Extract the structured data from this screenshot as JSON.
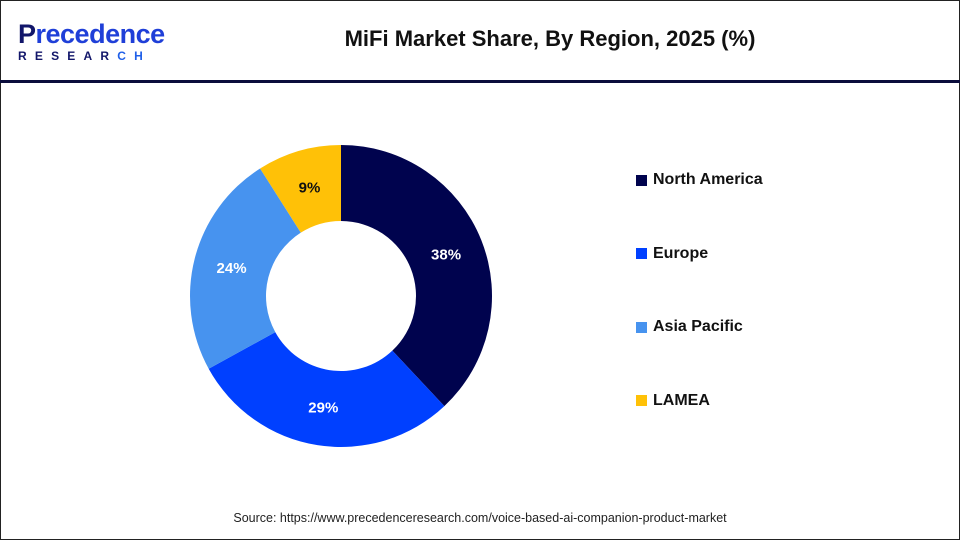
{
  "logo": {
    "text_top_first": "P",
    "text_top_rest": "recedence",
    "text_bottom_main": "RESEAR",
    "text_bottom_accent": "CH"
  },
  "header": {
    "title": "MiFi Market Share, By Region, 2025 (%)"
  },
  "chart_data": {
    "type": "pie",
    "donut": true,
    "title": "MiFi Market Share, By Region, 2025 (%)",
    "categories": [
      "North America",
      "Europe",
      "Asia Pacific",
      "LAMEA"
    ],
    "values": [
      38,
      29,
      24,
      9
    ],
    "labels": [
      "38%",
      "29%",
      "24%",
      "9%"
    ],
    "colors": [
      "#00034e",
      "#0040ff",
      "#4793ef",
      "#ffc107"
    ],
    "label_colors": [
      "#ffffff",
      "#ffffff",
      "#ffffff",
      "#111111"
    ],
    "legend_position": "right"
  },
  "footer": {
    "source": "Source: https://www.precedenceresearch.com/voice-based-ai-companion-product-market"
  }
}
